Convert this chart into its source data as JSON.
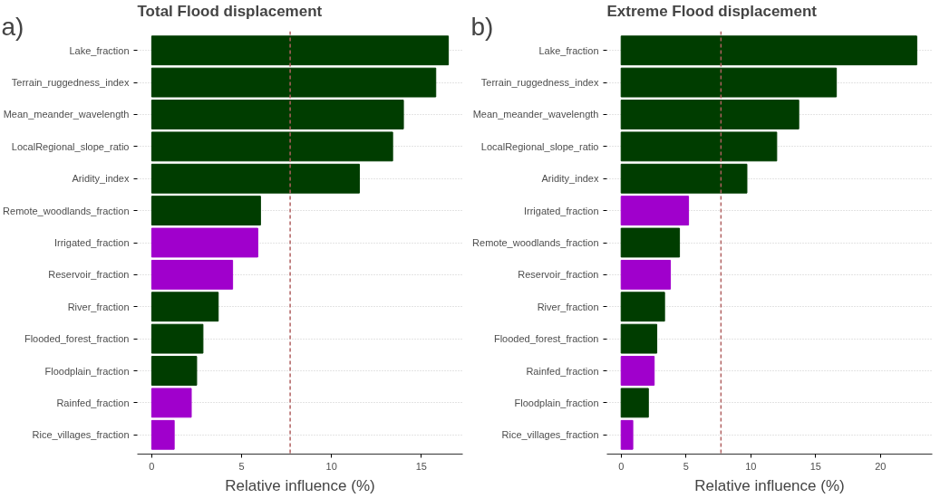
{
  "chart_data": [
    {
      "type": "bar",
      "orientation": "horizontal",
      "title": "Total Flood displacement",
      "xlabel": "Relative influence (%)",
      "annotations": [
        "a)"
      ],
      "categories": [
        "Lake_fraction",
        "Terrain_ruggedness_index",
        "Mean_meander_wavelength",
        "LocalRegional_slope_ratio",
        "Aridity_index",
        "Remote_woodlands_fraction",
        "Irrigated_fraction",
        "Reservoir_fraction",
        "River_fraction",
        "Flooded_forest_fraction",
        "Floodplain_fraction",
        "Rainfed_fraction",
        "Rice_villages_fraction"
      ],
      "values": [
        16.5,
        15.8,
        14.0,
        13.4,
        11.55,
        6.05,
        5.9,
        4.5,
        3.7,
        2.85,
        2.5,
        2.2,
        1.25
      ],
      "colors": [
        "#003d00",
        "#003d00",
        "#003d00",
        "#003d00",
        "#003d00",
        "#003d00",
        "#a000cc",
        "#a000cc",
        "#003d00",
        "#003d00",
        "#003d00",
        "#a000cc",
        "#a000cc"
      ],
      "xlim": [
        -0.8,
        17.3
      ],
      "xticks": [
        0,
        5,
        10,
        15
      ],
      "grid": "y",
      "ref_lines": [
        {
          "axis": "x",
          "value": 7.7,
          "color": "#b06060",
          "line_style": "dashed"
        }
      ]
    },
    {
      "type": "bar",
      "orientation": "horizontal",
      "title": "Extreme Flood displacement",
      "xlabel": "Relative influence (%)",
      "annotations": [
        "b)"
      ],
      "categories": [
        "Lake_fraction",
        "Terrain_ruggedness_index",
        "Mean_meander_wavelength",
        "LocalRegional_slope_ratio",
        "Aridity_index",
        "Irrigated_fraction",
        "Remote_woodlands_fraction",
        "Reservoir_fraction",
        "River_fraction",
        "Flooded_forest_fraction",
        "Rainfed_fraction",
        "Floodplain_fraction",
        "Rice_villages_fraction"
      ],
      "values": [
        22.8,
        16.6,
        13.7,
        12.0,
        9.7,
        5.2,
        4.5,
        3.8,
        3.35,
        2.75,
        2.55,
        2.1,
        0.9
      ],
      "colors": [
        "#003d00",
        "#003d00",
        "#003d00",
        "#003d00",
        "#003d00",
        "#a000cc",
        "#003d00",
        "#a000cc",
        "#003d00",
        "#003d00",
        "#a000cc",
        "#003d00",
        "#a000cc"
      ],
      "xlim": [
        -1.1,
        24.0
      ],
      "xticks": [
        0,
        5,
        10,
        15,
        20
      ],
      "grid": "y",
      "ref_lines": [
        {
          "axis": "x",
          "value": 7.7,
          "color": "#b06060",
          "line_style": "dashed"
        }
      ]
    }
  ]
}
